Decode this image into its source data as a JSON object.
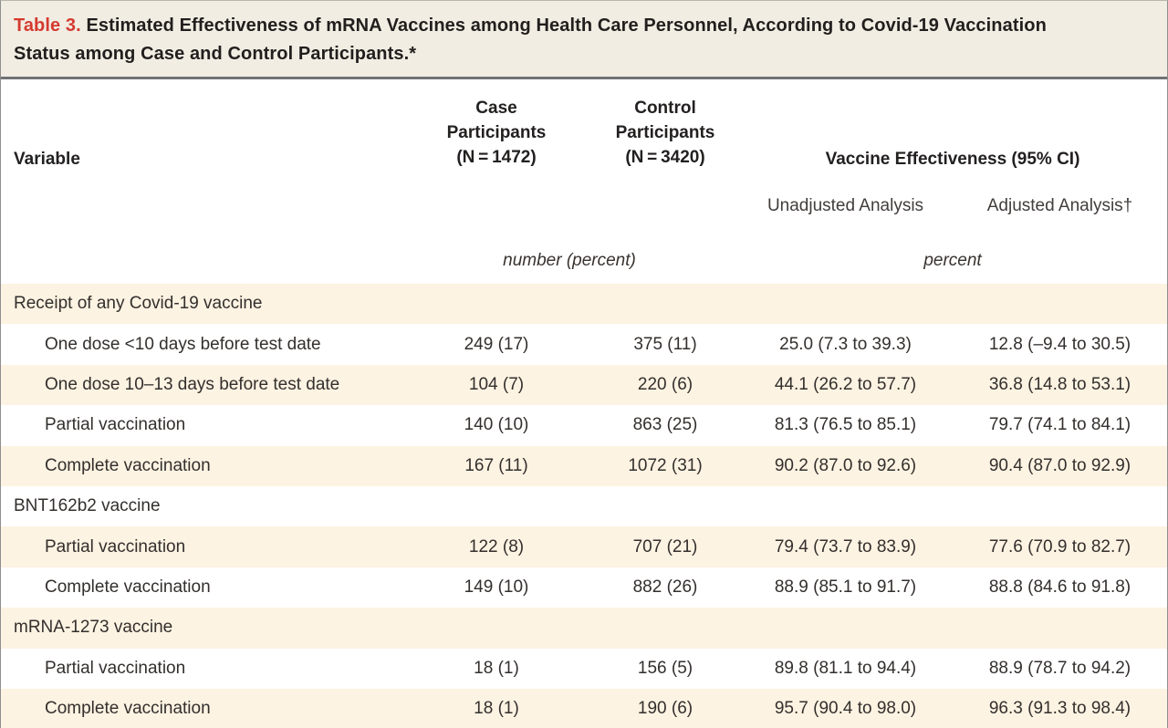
{
  "title": {
    "label": "Table 3.",
    "text": " Estimated Effectiveness of mRNA Vaccines among Health Care Personnel, According to Covid-19 Vaccination Status among Case and Control Participants.*"
  },
  "header": {
    "variable": "Variable",
    "case_stack": "Case\nParticipants\n(N = 1472)",
    "control_stack": "Control\nParticipants\n(N = 3420)",
    "vaccine_effectiveness": "Vaccine Effectiveness (95% CI)",
    "unadjusted": "Unadjusted Analysis",
    "adjusted": "Adjusted Analysis†",
    "unit_counts": "number (percent)",
    "unit_effectiveness": "percent"
  },
  "table": {
    "rows": [
      {
        "type": "section",
        "shade": "cream",
        "label": "Receipt of any Covid-19 vaccine"
      },
      {
        "type": "data",
        "shade": "white",
        "label": "One dose <10 days before test date",
        "case": "249 (17)",
        "control": "375 (11)",
        "unadjusted": "25.0 (7.3 to 39.3)",
        "adjusted": "12.8 (–9.4 to 30.5)"
      },
      {
        "type": "data",
        "shade": "cream",
        "label": "One dose 10–13 days before test date",
        "case": "104 (7)",
        "control": "220 (6)",
        "unadjusted": "44.1 (26.2 to 57.7)",
        "adjusted": "36.8 (14.8 to 53.1)"
      },
      {
        "type": "data",
        "shade": "white",
        "label": "Partial vaccination",
        "case": "140 (10)",
        "control": "863 (25)",
        "unadjusted": "81.3 (76.5 to 85.1)",
        "adjusted": "79.7 (74.1 to 84.1)"
      },
      {
        "type": "data",
        "shade": "cream",
        "label": "Complete vaccination",
        "case": "167 (11)",
        "control": "1072 (31)",
        "unadjusted": "90.2 (87.0 to 92.6)",
        "adjusted": "90.4 (87.0 to 92.9)"
      },
      {
        "type": "section",
        "shade": "white",
        "label": "BNT162b2 vaccine"
      },
      {
        "type": "data",
        "shade": "cream",
        "label": "Partial vaccination",
        "case": "122 (8)",
        "control": "707 (21)",
        "unadjusted": "79.4 (73.7 to 83.9)",
        "adjusted": "77.6 (70.9 to 82.7)"
      },
      {
        "type": "data",
        "shade": "white",
        "label": "Complete vaccination",
        "case": "149 (10)",
        "control": "882 (26)",
        "unadjusted": "88.9 (85.1 to 91.7)",
        "adjusted": "88.8 (84.6 to 91.8)"
      },
      {
        "type": "section",
        "shade": "cream",
        "label": "mRNA-1273 vaccine"
      },
      {
        "type": "data",
        "shade": "white",
        "label": "Partial vaccination",
        "case": "18 (1)",
        "control": "156 (5)",
        "unadjusted": "89.8 (81.1 to 94.4)",
        "adjusted": "88.9 (78.7 to 94.2)"
      },
      {
        "type": "data",
        "shade": "cream",
        "label": "Complete vaccination",
        "case": "18 (1)",
        "control": "190 (6)",
        "unadjusted": "95.7 (90.4 to 98.0)",
        "adjusted": "96.3 (91.3 to 98.4)"
      }
    ]
  },
  "colors": {
    "stripe_cream": "#fdf3e2",
    "title_band": "#f1ede3",
    "title_accent_red": "#d53a2f",
    "rule_gray": "#717275",
    "border_gray": "#8f8f8f",
    "text": "#2d2a28"
  }
}
